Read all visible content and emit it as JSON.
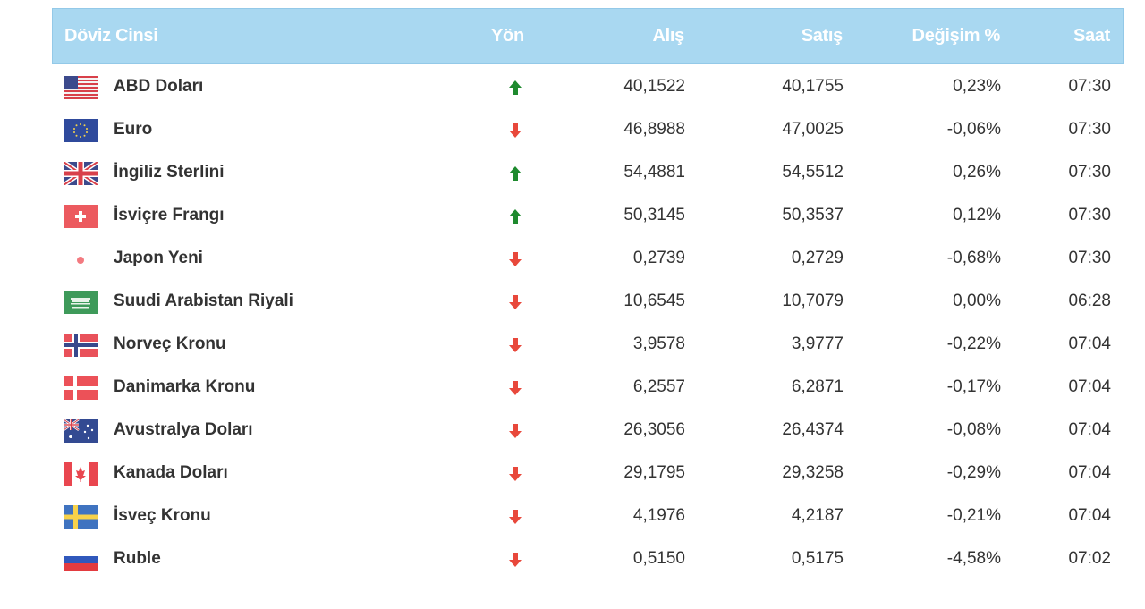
{
  "header": {
    "name": "Döviz Cinsi",
    "direction": "Yön",
    "buy": "Alış",
    "sell": "Satış",
    "change": "Değişim %",
    "time": "Saat"
  },
  "colors": {
    "header_bg": "#a9d8f1",
    "up": "#1e8a2e",
    "down": "#e8483b"
  },
  "rows": [
    {
      "flag": "usa-flag-icon",
      "name": "ABD Doları",
      "direction": "up",
      "buy": "40,1522",
      "sell": "40,1755",
      "change": "0,23%",
      "time": "07:30"
    },
    {
      "flag": "eu-flag-icon",
      "name": "Euro",
      "direction": "down",
      "buy": "46,8988",
      "sell": "47,0025",
      "change": "-0,06%",
      "time": "07:30"
    },
    {
      "flag": "uk-flag-icon",
      "name": "İngiliz Sterlini",
      "direction": "up",
      "buy": "54,4881",
      "sell": "54,5512",
      "change": "0,26%",
      "time": "07:30"
    },
    {
      "flag": "switzerland-flag-icon",
      "name": "İsviçre Frangı",
      "direction": "up",
      "buy": "50,3145",
      "sell": "50,3537",
      "change": "0,12%",
      "time": "07:30"
    },
    {
      "flag": "japan-flag-icon",
      "name": "Japon Yeni",
      "direction": "down",
      "buy": "0,2739",
      "sell": "0,2729",
      "change": "-0,68%",
      "time": "07:30"
    },
    {
      "flag": "saudi-arabia-flag-icon",
      "name": "Suudi Arabistan Riyali",
      "direction": "down",
      "buy": "10,6545",
      "sell": "10,7079",
      "change": "0,00%",
      "time": "06:28"
    },
    {
      "flag": "norway-flag-icon",
      "name": "Norveç Kronu",
      "direction": "down",
      "buy": "3,9578",
      "sell": "3,9777",
      "change": "-0,22%",
      "time": "07:04"
    },
    {
      "flag": "denmark-flag-icon",
      "name": "Danimarka Kronu",
      "direction": "down",
      "buy": "6,2557",
      "sell": "6,2871",
      "change": "-0,17%",
      "time": "07:04"
    },
    {
      "flag": "australia-flag-icon",
      "name": "Avustralya Doları",
      "direction": "down",
      "buy": "26,3056",
      "sell": "26,4374",
      "change": "-0,08%",
      "time": "07:04"
    },
    {
      "flag": "canada-flag-icon",
      "name": "Kanada Doları",
      "direction": "down",
      "buy": "29,1795",
      "sell": "29,3258",
      "change": "-0,29%",
      "time": "07:04"
    },
    {
      "flag": "sweden-flag-icon",
      "name": "İsveç Kronu",
      "direction": "down",
      "buy": "4,1976",
      "sell": "4,2187",
      "change": "-0,21%",
      "time": "07:04"
    },
    {
      "flag": "russia-flag-icon",
      "name": "Ruble",
      "direction": "down",
      "buy": "0,5150",
      "sell": "0,5175",
      "change": "-4,58%",
      "time": "07:02"
    }
  ]
}
